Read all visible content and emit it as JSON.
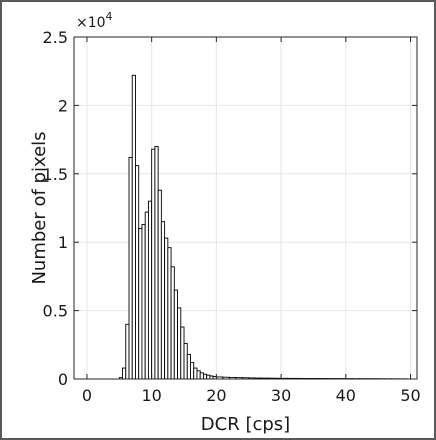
{
  "chart_data": {
    "type": "bar",
    "title": "",
    "xlabel": "DCR [cps]",
    "ylabel": "Number of pixels",
    "y_multiplier_label": "×10",
    "y_multiplier_exponent": "4",
    "xlim": [
      -2,
      51
    ],
    "ylim": [
      0,
      25000
    ],
    "xticks": [
      0,
      10,
      20,
      30,
      40,
      50
    ],
    "yticks": [
      0,
      5000,
      10000,
      15000,
      20000,
      25000
    ],
    "ytick_labels": [
      "0",
      "0.5",
      "1",
      "1.5",
      "2",
      "2.5"
    ],
    "grid": true,
    "bin_width": 0.5,
    "bins": [
      {
        "x": 0.0,
        "y": 0
      },
      {
        "x": 0.5,
        "y": 0
      },
      {
        "x": 1.0,
        "y": 0
      },
      {
        "x": 1.5,
        "y": 0
      },
      {
        "x": 2.0,
        "y": 0
      },
      {
        "x": 2.5,
        "y": 0
      },
      {
        "x": 3.0,
        "y": 0
      },
      {
        "x": 3.5,
        "y": 0
      },
      {
        "x": 4.0,
        "y": 0
      },
      {
        "x": 4.5,
        "y": 0
      },
      {
        "x": 5.0,
        "y": 100
      },
      {
        "x": 5.5,
        "y": 800
      },
      {
        "x": 6.0,
        "y": 4000
      },
      {
        "x": 6.5,
        "y": 16200
      },
      {
        "x": 7.0,
        "y": 22200
      },
      {
        "x": 7.5,
        "y": 15600
      },
      {
        "x": 8.0,
        "y": 11000
      },
      {
        "x": 8.5,
        "y": 11300
      },
      {
        "x": 9.0,
        "y": 12200
      },
      {
        "x": 9.5,
        "y": 13000
      },
      {
        "x": 10.0,
        "y": 16800
      },
      {
        "x": 10.5,
        "y": 17000
      },
      {
        "x": 11.0,
        "y": 13800
      },
      {
        "x": 11.5,
        "y": 11500
      },
      {
        "x": 12.0,
        "y": 10300
      },
      {
        "x": 12.5,
        "y": 9600
      },
      {
        "x": 13.0,
        "y": 8200
      },
      {
        "x": 13.5,
        "y": 6500
      },
      {
        "x": 14.0,
        "y": 5200
      },
      {
        "x": 14.5,
        "y": 3800
      },
      {
        "x": 15.0,
        "y": 2600
      },
      {
        "x": 15.5,
        "y": 1800
      },
      {
        "x": 16.0,
        "y": 1200
      },
      {
        "x": 16.5,
        "y": 800
      },
      {
        "x": 17.0,
        "y": 600
      },
      {
        "x": 17.5,
        "y": 450
      },
      {
        "x": 18.0,
        "y": 350
      },
      {
        "x": 18.5,
        "y": 280
      },
      {
        "x": 19.0,
        "y": 220
      },
      {
        "x": 19.5,
        "y": 180
      },
      {
        "x": 20.0,
        "y": 150
      },
      {
        "x": 21.0,
        "y": 130
      },
      {
        "x": 22.0,
        "y": 110
      },
      {
        "x": 23.0,
        "y": 100
      },
      {
        "x": 24.0,
        "y": 90
      },
      {
        "x": 25.0,
        "y": 80
      },
      {
        "x": 26.0,
        "y": 70
      },
      {
        "x": 27.0,
        "y": 65
      },
      {
        "x": 28.0,
        "y": 60
      },
      {
        "x": 29.0,
        "y": 55
      },
      {
        "x": 30.0,
        "y": 50
      },
      {
        "x": 31.0,
        "y": 48
      },
      {
        "x": 32.0,
        "y": 45
      },
      {
        "x": 33.0,
        "y": 42
      },
      {
        "x": 34.0,
        "y": 40
      },
      {
        "x": 35.0,
        "y": 38
      },
      {
        "x": 36.0,
        "y": 36
      },
      {
        "x": 37.0,
        "y": 34
      },
      {
        "x": 38.0,
        "y": 32
      },
      {
        "x": 39.0,
        "y": 30
      },
      {
        "x": 40.0,
        "y": 28
      },
      {
        "x": 41.0,
        "y": 26
      },
      {
        "x": 42.0,
        "y": 25
      },
      {
        "x": 43.0,
        "y": 24
      },
      {
        "x": 44.0,
        "y": 22
      },
      {
        "x": 45.0,
        "y": 20
      },
      {
        "x": 46.0,
        "y": 18
      },
      {
        "x": 47.0,
        "y": 16
      },
      {
        "x": 48.0,
        "y": 14
      },
      {
        "x": 49.0,
        "y": 12
      }
    ],
    "colors": {
      "bar_fill": "#ffffff",
      "bar_edge": "#000000",
      "grid": "#e6e6e6",
      "axis": "#262626"
    }
  }
}
